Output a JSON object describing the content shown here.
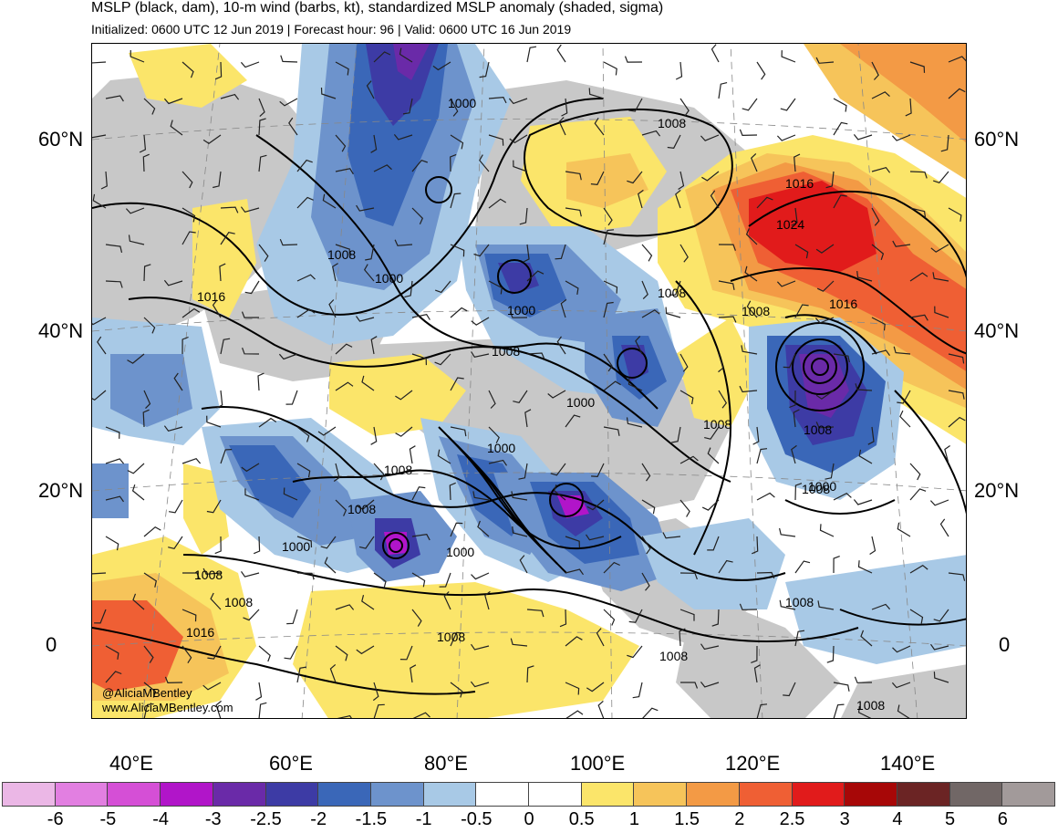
{
  "header": {
    "title": "MSLP (black, dam), 10-m wind (barbs, kt), standardized MSLP anomaly (shaded, sigma)",
    "subtitle": "Initialized: 0600 UTC 12 Jun 2019 | Forecast hour: 96 | Valid: 0600 UTC 16 Jun 2019"
  },
  "map": {
    "lat_labels": [
      "60°N",
      "40°N",
      "20°N",
      "0"
    ],
    "lon_labels": [
      "40°E",
      "60°E",
      "80°E",
      "100°E",
      "120°E",
      "140°E"
    ],
    "isobar_labels": [
      "1000",
      "1008",
      "1016",
      "1024",
      "1016",
      "1008",
      "1008",
      "1016",
      "1000",
      "1008",
      "1000",
      "1008",
      "1000",
      "1008",
      "1008",
      "1000",
      "1008",
      "1008",
      "1000",
      "1000",
      "1008",
      "1008",
      "1016",
      "1008",
      "1008",
      "1008",
      "1008",
      "1008",
      "1000"
    ],
    "watermark_handle": "@AliciaMBentley",
    "watermark_url": "www.AliciaMBentley.com"
  },
  "colorbar": {
    "colors": [
      "#ebb7e6",
      "#e27fe1",
      "#d54fd6",
      "#b115c9",
      "#6a2aa8",
      "#3d3ba5",
      "#3a67b8",
      "#6d93cc",
      "#a8c9e6",
      "#ffffff",
      "#ffffff",
      "#fbe56a",
      "#f6c45a",
      "#f39a45",
      "#ef5f34",
      "#e11b1b",
      "#a70707",
      "#6b2424",
      "#716766",
      "#a29a9a"
    ],
    "labels": [
      "-6",
      "-5",
      "-4",
      "-3",
      "-2.5",
      "-2",
      "-1.5",
      "-1",
      "-0.5",
      "0",
      "0.5",
      "1",
      "1.5",
      "2",
      "2.5",
      "3",
      "4",
      "5",
      "6"
    ]
  }
}
